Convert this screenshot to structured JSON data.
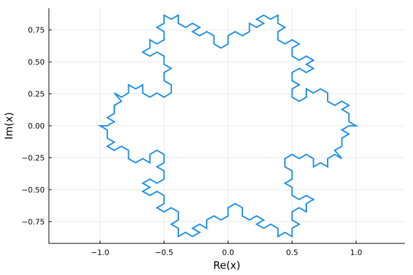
{
  "chart_data": {
    "type": "line",
    "title": "",
    "xlabel": "Re(x)",
    "ylabel": "Im(x)",
    "xlim": [
      -1.4,
      1.38
    ],
    "ylim": [
      -0.92,
      0.92
    ],
    "x_ticks": [
      -1.0,
      -0.5,
      0.0,
      0.5,
      1.0
    ],
    "x_tick_labels": [
      "−1.0",
      "−0.5",
      "0.0",
      "0.5",
      "1.0"
    ],
    "y_ticks": [
      -0.75,
      -0.5,
      -0.25,
      0.0,
      0.25,
      0.5,
      0.75
    ],
    "y_tick_labels": [
      "−0.75",
      "−0.50",
      "−0.25",
      "0.00",
      "0.25",
      "0.50",
      "0.75"
    ],
    "grid": true,
    "legend": "none",
    "colors": {
      "series": "#1f8fe8",
      "grid": "#e8e8e8",
      "axis": "#000000"
    },
    "series": [
      {
        "closed": true,
        "points": [
          [
            1.0,
            0.0
          ],
          [
            0.944,
            0.032
          ],
          [
            0.944,
            0.096
          ],
          [
            0.889,
            0.128
          ],
          [
            0.944,
            0.16
          ],
          [
            0.889,
            0.192
          ],
          [
            0.833,
            0.16
          ],
          [
            0.778,
            0.192
          ],
          [
            0.778,
            0.257
          ],
          [
            0.722,
            0.289
          ],
          [
            0.667,
            0.257
          ],
          [
            0.611,
            0.289
          ],
          [
            0.611,
            0.224
          ],
          [
            0.556,
            0.192
          ],
          [
            0.5,
            0.224
          ],
          [
            0.5,
            0.289
          ],
          [
            0.556,
            0.321
          ],
          [
            0.5,
            0.353
          ],
          [
            0.5,
            0.417
          ],
          [
            0.556,
            0.449
          ],
          [
            0.611,
            0.417
          ],
          [
            0.667,
            0.449
          ],
          [
            0.611,
            0.481
          ],
          [
            0.667,
            0.513
          ],
          [
            0.611,
            0.545
          ],
          [
            0.556,
            0.513
          ],
          [
            0.5,
            0.545
          ],
          [
            0.5,
            0.609
          ],
          [
            0.556,
            0.641
          ],
          [
            0.5,
            0.673
          ],
          [
            0.444,
            0.641
          ],
          [
            0.389,
            0.673
          ],
          [
            0.389,
            0.737
          ],
          [
            0.444,
            0.77
          ],
          [
            0.389,
            0.802
          ],
          [
            0.389,
            0.866
          ],
          [
            0.333,
            0.834
          ],
          [
            0.278,
            0.866
          ],
          [
            0.222,
            0.834
          ],
          [
            0.278,
            0.802
          ],
          [
            0.222,
            0.77
          ],
          [
            0.167,
            0.802
          ],
          [
            0.167,
            0.737
          ],
          [
            0.111,
            0.705
          ],
          [
            0.056,
            0.737
          ],
          [
            0.0,
            0.705
          ],
          [
            0.0,
            0.641
          ],
          [
            -0.056,
            0.609
          ],
          [
            -0.111,
            0.641
          ],
          [
            -0.111,
            0.705
          ],
          [
            -0.167,
            0.737
          ],
          [
            -0.222,
            0.705
          ],
          [
            -0.278,
            0.737
          ],
          [
            -0.222,
            0.77
          ],
          [
            -0.278,
            0.802
          ],
          [
            -0.333,
            0.77
          ],
          [
            -0.389,
            0.802
          ],
          [
            -0.389,
            0.866
          ],
          [
            -0.444,
            0.834
          ],
          [
            -0.5,
            0.866
          ],
          [
            -0.5,
            0.802
          ],
          [
            -0.556,
            0.77
          ],
          [
            -0.5,
            0.737
          ],
          [
            -0.5,
            0.673
          ],
          [
            -0.556,
            0.641
          ],
          [
            -0.611,
            0.673
          ],
          [
            -0.611,
            0.609
          ],
          [
            -0.667,
            0.577
          ],
          [
            -0.611,
            0.545
          ],
          [
            -0.556,
            0.577
          ],
          [
            -0.5,
            0.545
          ],
          [
            -0.5,
            0.481
          ],
          [
            -0.444,
            0.449
          ],
          [
            -0.5,
            0.417
          ],
          [
            -0.5,
            0.353
          ],
          [
            -0.444,
            0.321
          ],
          [
            -0.444,
            0.257
          ],
          [
            -0.5,
            0.224
          ],
          [
            -0.556,
            0.257
          ],
          [
            -0.611,
            0.224
          ],
          [
            -0.667,
            0.257
          ],
          [
            -0.667,
            0.321
          ],
          [
            -0.722,
            0.289
          ],
          [
            -0.778,
            0.321
          ],
          [
            -0.778,
            0.257
          ],
          [
            -0.833,
            0.224
          ],
          [
            -0.889,
            0.257
          ],
          [
            -0.833,
            0.192
          ],
          [
            -0.889,
            0.16
          ],
          [
            -0.889,
            0.096
          ],
          [
            -0.944,
            0.064
          ],
          [
            -0.889,
            0.032
          ],
          [
            -0.944,
            0.0
          ],
          [
            -1.0,
            0.0
          ],
          [
            -0.944,
            -0.032
          ],
          [
            -0.944,
            -0.096
          ],
          [
            -0.889,
            -0.128
          ],
          [
            -0.944,
            -0.16
          ],
          [
            -0.889,
            -0.192
          ],
          [
            -0.833,
            -0.16
          ],
          [
            -0.778,
            -0.192
          ],
          [
            -0.778,
            -0.257
          ],
          [
            -0.722,
            -0.289
          ],
          [
            -0.667,
            -0.257
          ],
          [
            -0.611,
            -0.289
          ],
          [
            -0.611,
            -0.224
          ],
          [
            -0.556,
            -0.192
          ],
          [
            -0.5,
            -0.224
          ],
          [
            -0.5,
            -0.289
          ],
          [
            -0.556,
            -0.321
          ],
          [
            -0.5,
            -0.353
          ],
          [
            -0.5,
            -0.417
          ],
          [
            -0.556,
            -0.449
          ],
          [
            -0.611,
            -0.417
          ],
          [
            -0.667,
            -0.449
          ],
          [
            -0.611,
            -0.481
          ],
          [
            -0.667,
            -0.513
          ],
          [
            -0.611,
            -0.545
          ],
          [
            -0.556,
            -0.513
          ],
          [
            -0.5,
            -0.545
          ],
          [
            -0.5,
            -0.609
          ],
          [
            -0.556,
            -0.641
          ],
          [
            -0.5,
            -0.673
          ],
          [
            -0.444,
            -0.641
          ],
          [
            -0.389,
            -0.673
          ],
          [
            -0.389,
            -0.737
          ],
          [
            -0.444,
            -0.77
          ],
          [
            -0.389,
            -0.802
          ],
          [
            -0.389,
            -0.866
          ],
          [
            -0.333,
            -0.834
          ],
          [
            -0.278,
            -0.866
          ],
          [
            -0.222,
            -0.834
          ],
          [
            -0.278,
            -0.802
          ],
          [
            -0.222,
            -0.77
          ],
          [
            -0.167,
            -0.802
          ],
          [
            -0.167,
            -0.737
          ],
          [
            -0.111,
            -0.705
          ],
          [
            -0.056,
            -0.737
          ],
          [
            0.0,
            -0.705
          ],
          [
            0.0,
            -0.641
          ],
          [
            0.056,
            -0.609
          ],
          [
            0.111,
            -0.641
          ],
          [
            0.111,
            -0.705
          ],
          [
            0.167,
            -0.737
          ],
          [
            0.222,
            -0.705
          ],
          [
            0.278,
            -0.737
          ],
          [
            0.222,
            -0.77
          ],
          [
            0.278,
            -0.802
          ],
          [
            0.333,
            -0.77
          ],
          [
            0.389,
            -0.802
          ],
          [
            0.389,
            -0.866
          ],
          [
            0.444,
            -0.834
          ],
          [
            0.5,
            -0.866
          ],
          [
            0.5,
            -0.802
          ],
          [
            0.556,
            -0.77
          ],
          [
            0.5,
            -0.737
          ],
          [
            0.5,
            -0.673
          ],
          [
            0.556,
            -0.641
          ],
          [
            0.611,
            -0.673
          ],
          [
            0.611,
            -0.609
          ],
          [
            0.667,
            -0.577
          ],
          [
            0.611,
            -0.545
          ],
          [
            0.556,
            -0.577
          ],
          [
            0.5,
            -0.545
          ],
          [
            0.5,
            -0.481
          ],
          [
            0.444,
            -0.449
          ],
          [
            0.5,
            -0.417
          ],
          [
            0.5,
            -0.353
          ],
          [
            0.444,
            -0.321
          ],
          [
            0.444,
            -0.257
          ],
          [
            0.5,
            -0.224
          ],
          [
            0.556,
            -0.257
          ],
          [
            0.611,
            -0.224
          ],
          [
            0.667,
            -0.257
          ],
          [
            0.667,
            -0.321
          ],
          [
            0.722,
            -0.289
          ],
          [
            0.778,
            -0.321
          ],
          [
            0.778,
            -0.257
          ],
          [
            0.833,
            -0.224
          ],
          [
            0.889,
            -0.257
          ],
          [
            0.833,
            -0.192
          ],
          [
            0.889,
            -0.16
          ],
          [
            0.889,
            -0.096
          ],
          [
            0.944,
            -0.064
          ],
          [
            0.889,
            -0.032
          ],
          [
            0.944,
            0.0
          ],
          [
            1.0,
            0.0
          ]
        ]
      }
    ]
  }
}
